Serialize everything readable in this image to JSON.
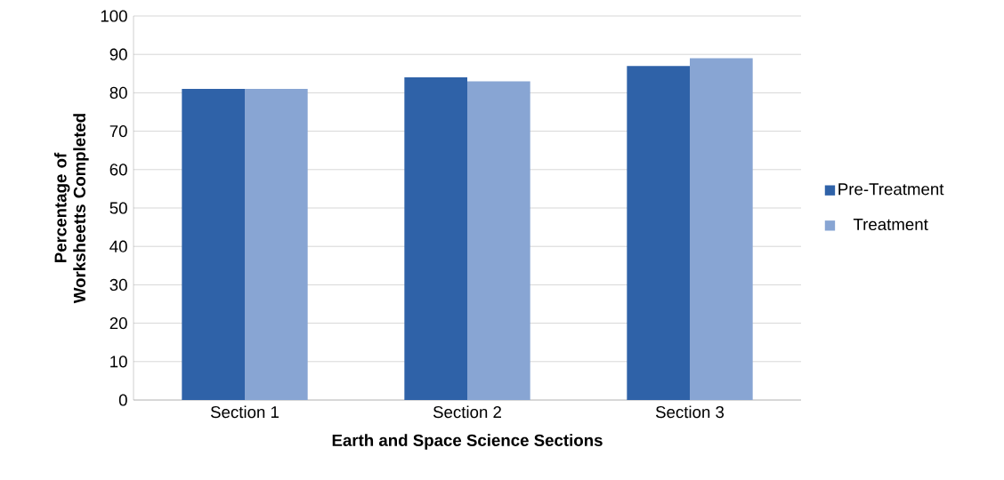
{
  "chart_data": {
    "type": "bar",
    "xlabel": "Earth and Space Science Sections",
    "ylabel": "Percentage of Worksheetts Completed",
    "categories": [
      "Section 1",
      "Section 2",
      "Section 3"
    ],
    "series": [
      {
        "name": "Pre-Treatment",
        "color": "#2f62a8",
        "values": [
          81,
          84,
          87
        ]
      },
      {
        "name": "Treatment",
        "color": "#88a5d3",
        "values": [
          81,
          83,
          89
        ]
      }
    ],
    "ylim": [
      0,
      100
    ],
    "yticks": [
      0,
      10,
      20,
      30,
      40,
      50,
      60,
      70,
      80,
      90,
      100
    ],
    "grid": "y",
    "legend": "right"
  }
}
